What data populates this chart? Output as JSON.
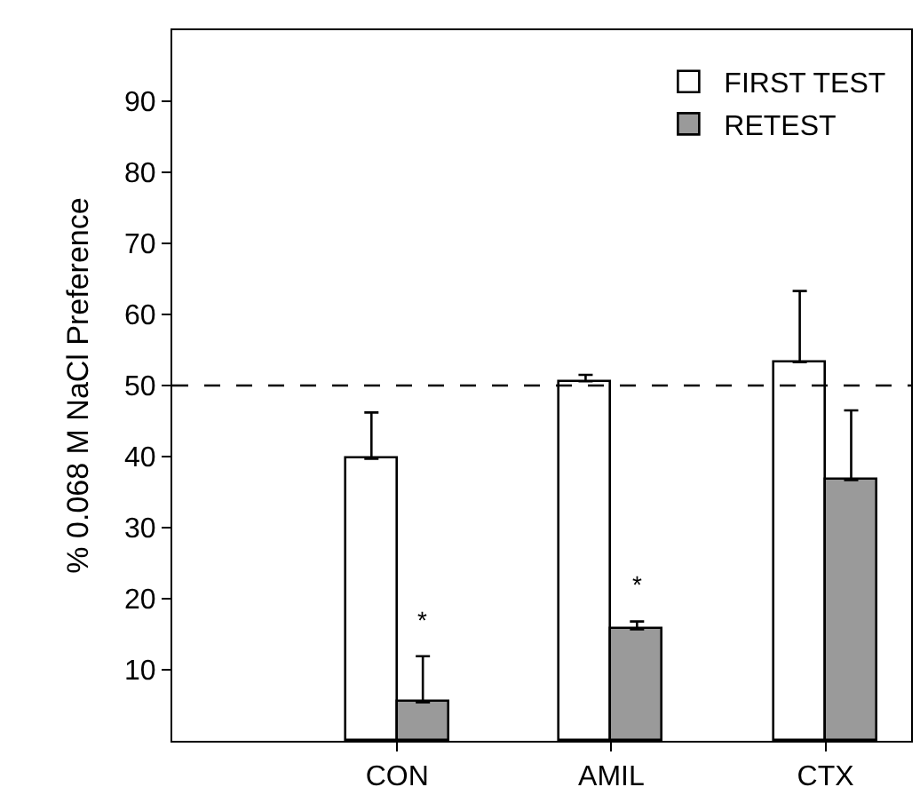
{
  "chart_data": {
    "type": "bar",
    "ylabel": "% 0.068 M NaCl Preference",
    "categories": [
      "CON",
      "AMIL",
      "CTX"
    ],
    "series": [
      {
        "name": "FIRST TEST",
        "color": "#ffffff",
        "values": [
          39.7,
          50.6,
          53.3
        ],
        "errors": [
          [
            39.7,
            46.2
          ],
          [
            50.6,
            51.5
          ],
          [
            53.3,
            63.3
          ]
        ]
      },
      {
        "name": "RETEST",
        "color": "#9a9a9a",
        "values": [
          5.4,
          15.7,
          36.7
        ],
        "errors": [
          [
            5.4,
            11.9
          ],
          [
            15.7,
            16.8
          ],
          [
            36.7,
            46.5
          ]
        ]
      }
    ],
    "ylim": [
      0,
      100
    ],
    "yticks": [
      10,
      20,
      30,
      40,
      50,
      60,
      70,
      80,
      90
    ],
    "ref_lines": [
      {
        "axis": "y",
        "value": 50,
        "line_style": "dashed",
        "color": "#000000"
      }
    ],
    "annotations": [
      {
        "text": "*",
        "x": "CON",
        "y": 17
      },
      {
        "text": "*",
        "x": "AMIL",
        "y": 22
      }
    ],
    "legend": "top right"
  }
}
